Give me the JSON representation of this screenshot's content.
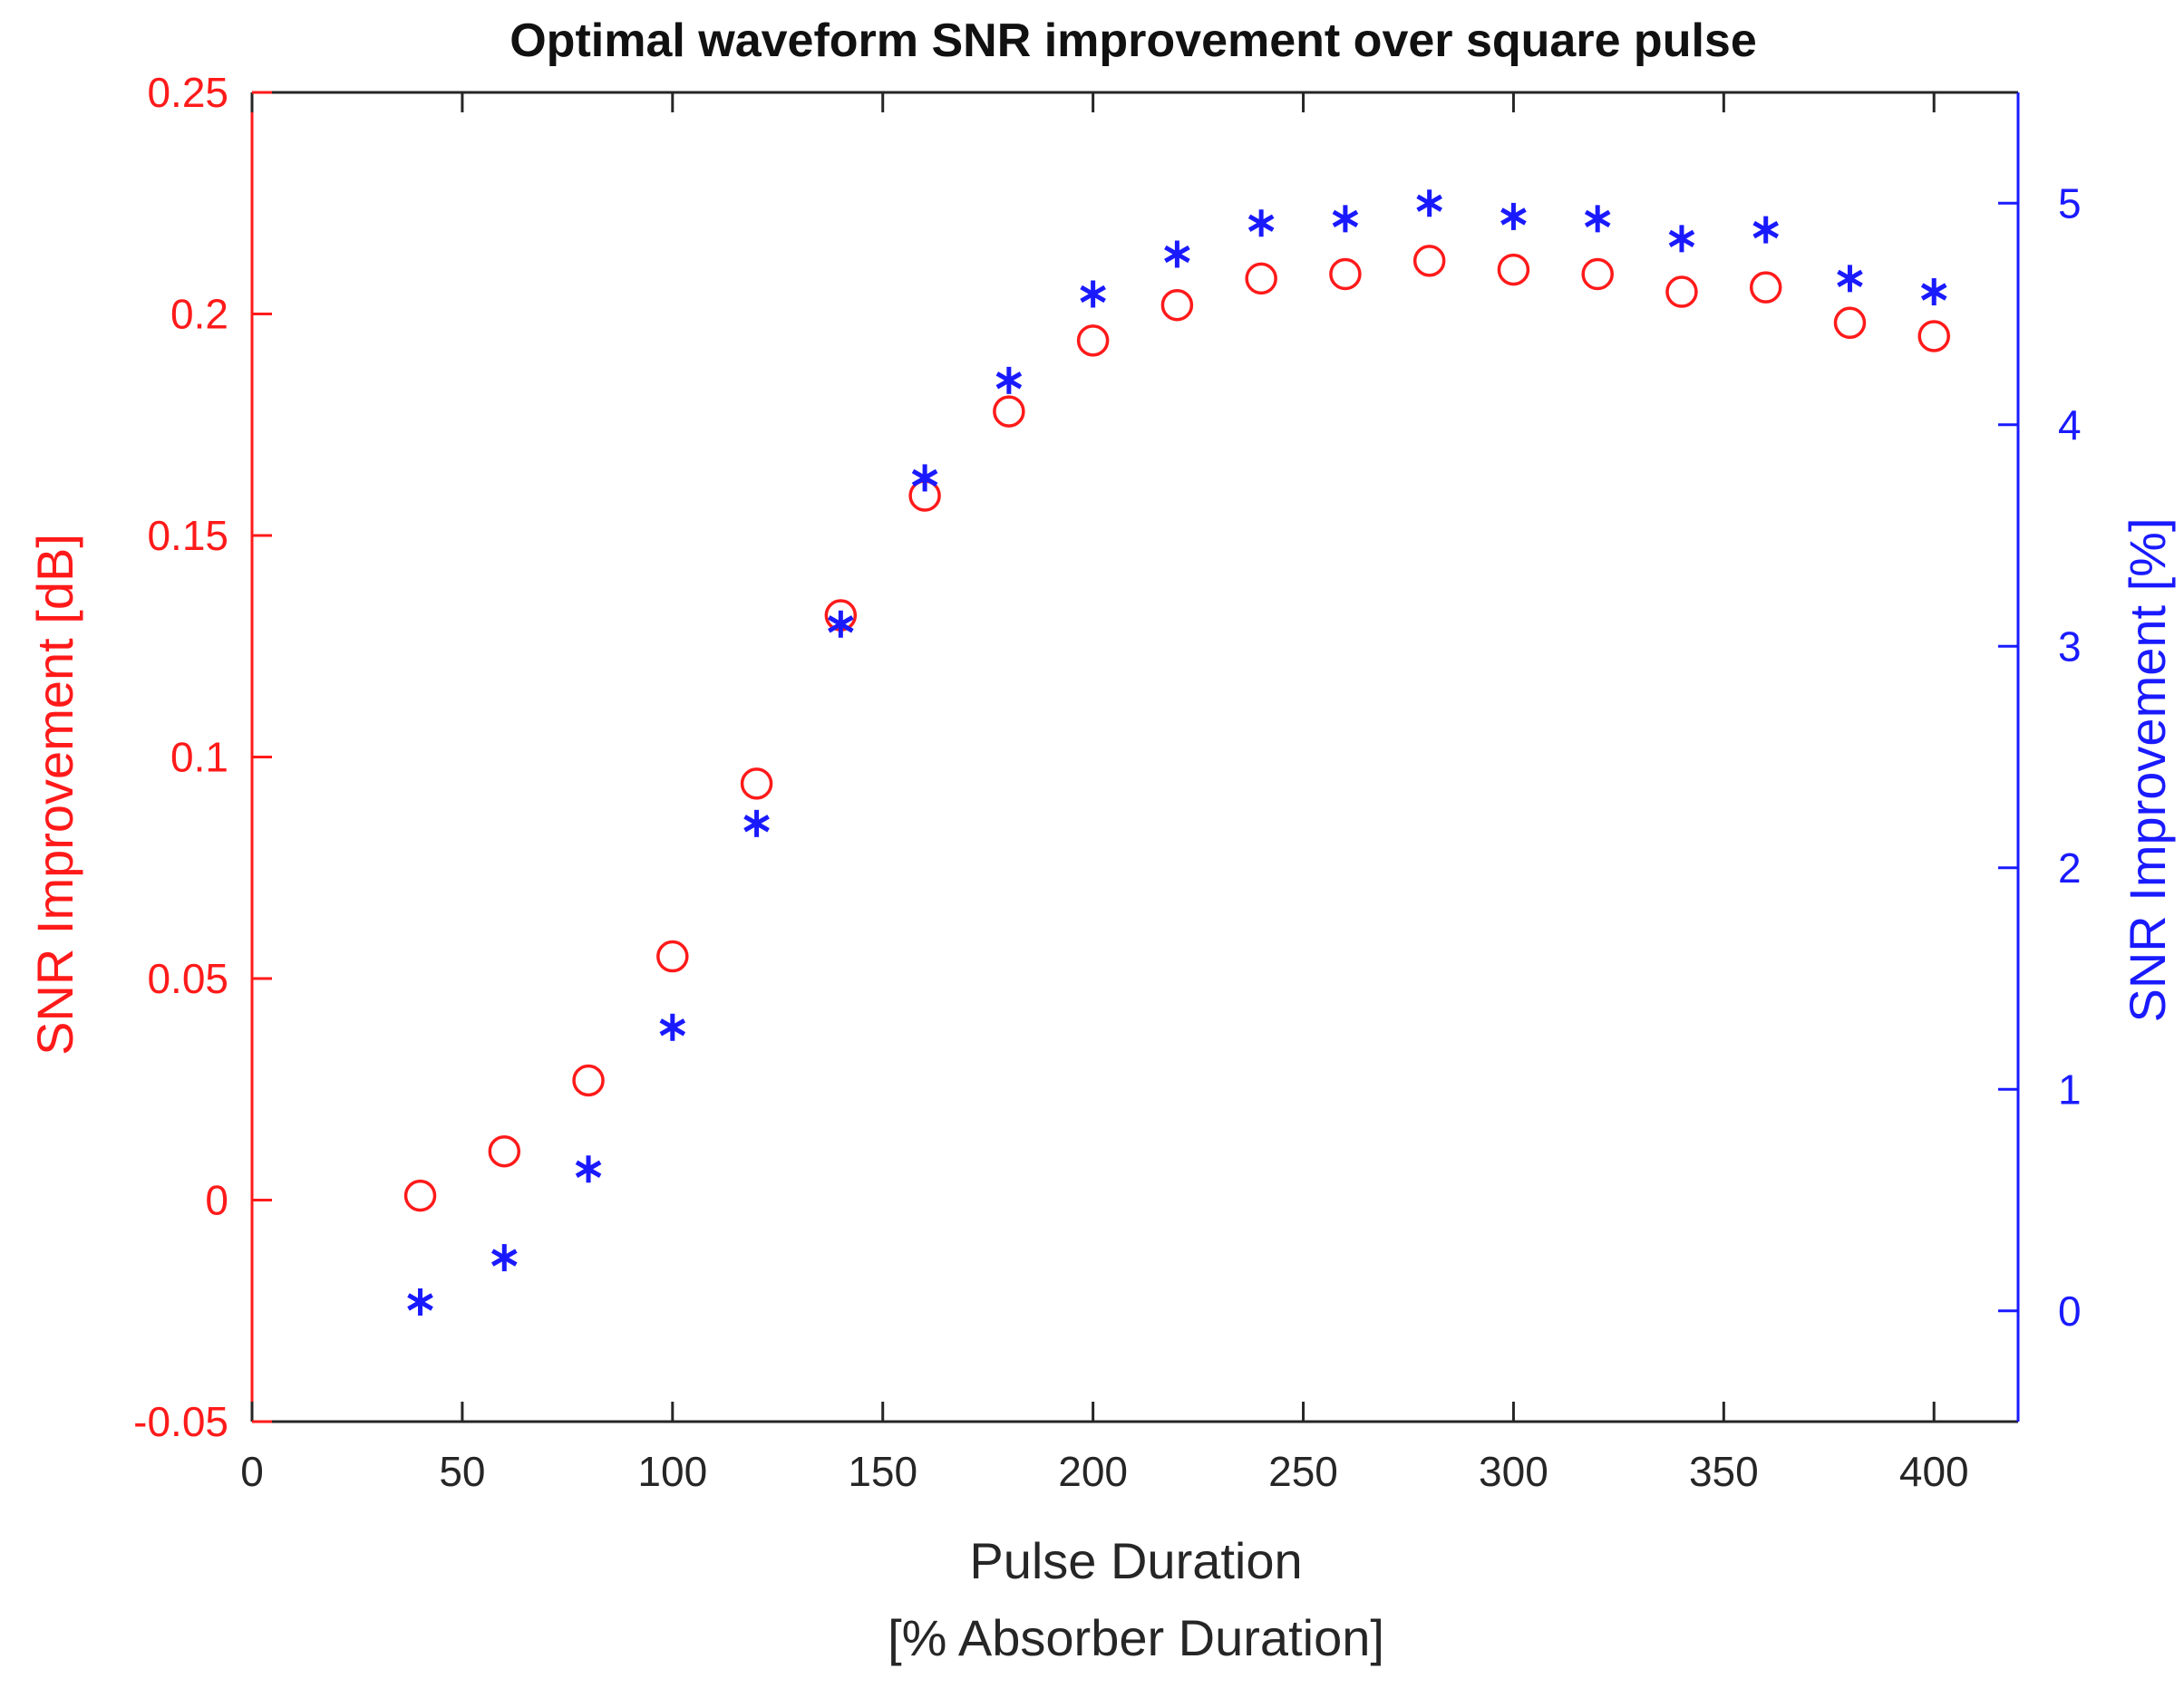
{
  "chart_data": {
    "type": "scatter",
    "title": "Optimal waveform SNR improvement over square pulse",
    "xlabel": [
      "Pulse Duration",
      "[% Absorber Duration]"
    ],
    "ylabel_left": "SNR Improvement [dB]",
    "ylabel_right": "SNR Improvement [%]",
    "xlim": [
      0,
      420
    ],
    "ylim_left": [
      -0.05,
      0.25
    ],
    "ylim_right": [
      -0.5,
      5.5
    ],
    "x_ticks": [
      0,
      50,
      100,
      150,
      200,
      250,
      300,
      350,
      400
    ],
    "x_tick_labels": [
      "0",
      "50",
      "100",
      "150",
      "200",
      "250",
      "300",
      "350",
      "400"
    ],
    "y_left_ticks": [
      -0.05,
      0,
      0.05,
      0.1,
      0.15,
      0.2,
      0.25
    ],
    "y_left_tick_labels": [
      "-0.05",
      "0",
      "0.05",
      "0.1",
      "0.15",
      "0.2",
      "0.25"
    ],
    "y_right_ticks": [
      0,
      1,
      2,
      3,
      4,
      5
    ],
    "y_right_tick_labels": [
      "0",
      "1",
      "2",
      "3",
      "4",
      "5"
    ],
    "x": [
      40,
      60,
      80,
      100,
      120,
      140,
      160,
      180,
      200,
      220,
      240,
      260,
      280,
      300,
      320,
      340,
      360,
      380,
      400
    ],
    "series": [
      {
        "name": "SNR Improvement [dB]",
        "axis": "left",
        "marker": "circle",
        "color": "#ff1a1a",
        "values": [
          0.001,
          0.011,
          0.027,
          0.055,
          0.094,
          0.132,
          0.159,
          0.178,
          0.194,
          0.202,
          0.208,
          0.209,
          0.212,
          0.21,
          0.209,
          0.205,
          0.206,
          0.198,
          0.195
        ]
      },
      {
        "name": "SNR Improvement [%]",
        "axis": "right",
        "marker": "asterisk",
        "color": "#1a1aff",
        "values": [
          0.04,
          0.24,
          0.64,
          1.28,
          2.2,
          3.1,
          3.76,
          4.2,
          4.59,
          4.77,
          4.91,
          4.93,
          5.0,
          4.94,
          4.93,
          4.84,
          4.88,
          4.66,
          4.6
        ]
      }
    ],
    "grid": false,
    "colors": {
      "left_axis": "#ff1a1a",
      "right_axis": "#1a1aff",
      "bottom_axis": "#262626"
    }
  }
}
